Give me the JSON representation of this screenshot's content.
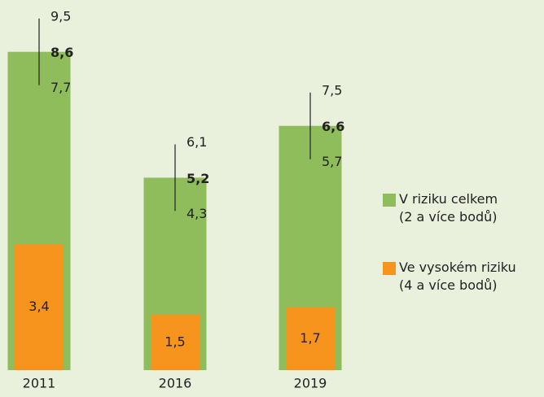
{
  "chart_data": {
    "type": "bar",
    "categories": [
      "2011",
      "2016",
      "2019"
    ],
    "series": [
      {
        "name": "V riziku celkem\n(2 a více bodů)",
        "color": "#8fbd5c",
        "values": [
          8.6,
          5.2,
          6.6
        ],
        "value_labels": [
          "8,6",
          "5,2",
          "6,6"
        ],
        "ci_low": [
          7.7,
          4.3,
          5.7
        ],
        "ci_low_labels": [
          "7,7",
          "4,3",
          "5,7"
        ],
        "ci_high": [
          9.5,
          6.1,
          7.5
        ],
        "ci_high_labels": [
          "9,5",
          "6,1",
          "7,5"
        ]
      },
      {
        "name": "Ve vysokém riziku\n(4 a více bodů)",
        "color": "#f7941d",
        "values": [
          3.4,
          1.5,
          1.7
        ],
        "value_labels": [
          "3,4",
          "1,5",
          "1,7"
        ]
      }
    ]
  }
}
